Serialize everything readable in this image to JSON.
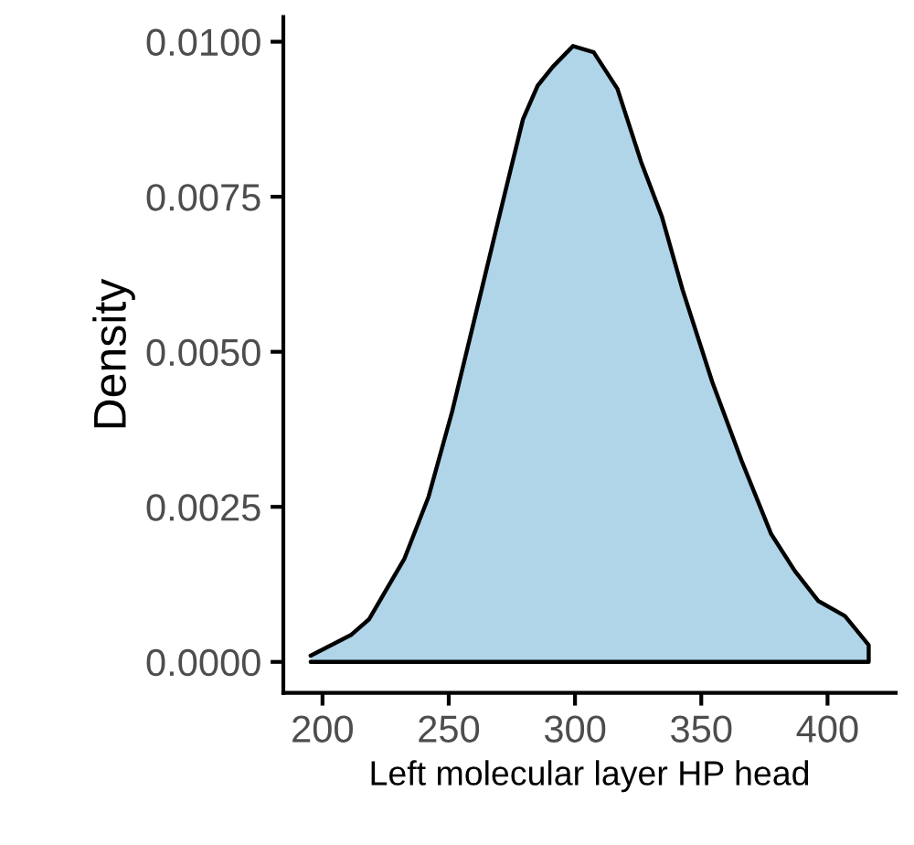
{
  "chart_data": {
    "type": "area",
    "xlabel": "Left molecular layer HP head",
    "ylabel": "Density",
    "x": [
      195.3,
      211.5,
      218.5,
      232.5,
      241.9,
      251.3,
      263,
      272.3,
      279.4,
      285.2,
      291.1,
      299.2,
      307.4,
      316.8,
      326.2,
      334.4,
      342.6,
      354.3,
      366,
      377.7,
      387,
      396.4,
      406.9,
      416.3
    ],
    "series": [
      {
        "color": "#b0d4e8",
        "values": [
          0.0001,
          0.00044,
          0.00069,
          0.00167,
          0.00265,
          0.00403,
          0.006,
          0.00757,
          0.00875,
          0.00929,
          0.00959,
          0.00993,
          0.00983,
          0.00924,
          0.00806,
          0.00718,
          0.006,
          0.00452,
          0.00324,
          0.00206,
          0.00147,
          0.00098,
          0.00074,
          0.00027
        ]
      }
    ],
    "xlim": [
      184.5,
      427
    ],
    "ylim": [
      -0.0005,
      0.0104
    ],
    "xticks": [
      200,
      250,
      300,
      350,
      400
    ],
    "yticks": [
      {
        "value": 0,
        "label": "0.0000"
      },
      {
        "value": 0.0025,
        "label": "0.0025"
      },
      {
        "value": 0.005,
        "label": "0.0050"
      },
      {
        "value": 0.0075,
        "label": "0.0075"
      },
      {
        "value": 0.01,
        "label": "0.0100"
      }
    ],
    "grid": false,
    "legend": false
  }
}
